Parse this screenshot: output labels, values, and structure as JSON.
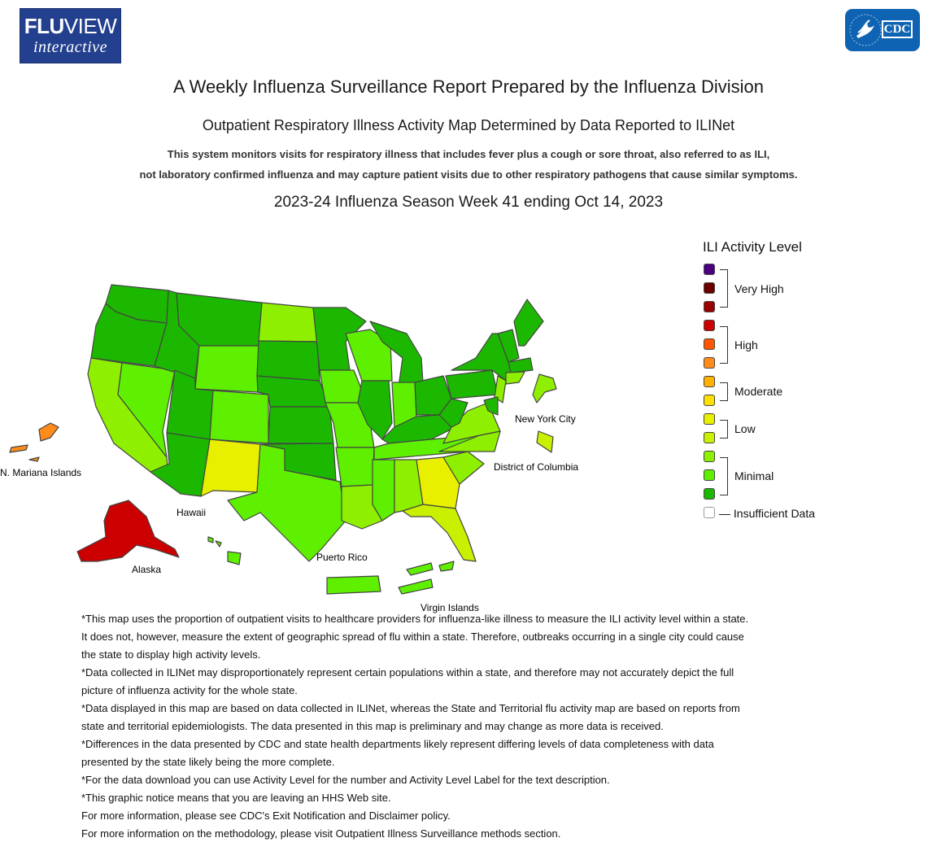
{
  "header": {
    "logo_left_line1_bold": "FLU",
    "logo_left_line1_thin": "VIEW",
    "logo_left_line2": "interactive",
    "logo_right": "CDC"
  },
  "titles": {
    "main": "A Weekly Influenza Surveillance Report Prepared by the Influenza Division",
    "sub": "Outpatient Respiratory Illness Activity Map Determined by Data Reported to ILINet",
    "desc_line1": "This system monitors visits for respiratory illness that includes fever plus a cough or sore throat, also referred to as ILI,",
    "desc_line2": "not laboratory confirmed influenza and may capture patient visits due to other respiratory pathogens that cause similar symptoms.",
    "week": "2023-24 Influenza Season Week 41 ending Oct 14, 2023"
  },
  "map_labels": {
    "mariana": "N. Mariana Islands",
    "hawaii": "Hawaii",
    "alaska": "Alaska",
    "puerto_rico": "Puerto Rico",
    "virgin_islands": "Virgin Islands",
    "nyc": "New York City",
    "dc": "District of Columbia"
  },
  "legend": {
    "title": "ILI Activity Level",
    "swatch_colors": [
      "#4b0082",
      "#6b0000",
      "#990000",
      "#cc0000",
      "#ff5500",
      "#ff8c1a",
      "#ffb000",
      "#ffe000",
      "#e8f000",
      "#c8f000",
      "#8ef000",
      "#5ef000",
      "#1cb800",
      "#ffffff"
    ],
    "groups": [
      "Very High",
      "High",
      "Moderate",
      "Low",
      "Minimal"
    ],
    "insufficient": "— Insufficient Data"
  },
  "colors": {
    "alaska": "#cc0000",
    "mariana": "#ff8c1a",
    "new_mexico": "#e8f000",
    "georgia": "#e8f000",
    "minimal_dark": "#1cb800",
    "minimal_mid": "#5ef000",
    "minimal_light": "#8ef000",
    "low": "#c8f000"
  },
  "notes": [
    "*This map uses the proportion of outpatient visits to healthcare providers for influenza-like illness to measure the ILI activity level within a state.",
    "It does not, however, measure the extent of geographic spread of flu within a state. Therefore, outbreaks occurring in a single city could cause",
    "the state to display high activity levels.",
    "*Data collected in ILINet may disproportionately represent certain populations within a state, and therefore may not accurately depict the full",
    "picture of influenza activity for the whole state.",
    "*Data displayed in this map are based on data collected in ILINet, whereas the State and Territorial flu activity map are based on reports from",
    "state and territorial epidemiologists. The data presented in this map is preliminary and may change as more data is received.",
    "*Differences in the data presented by CDC and state health departments likely represent differing levels of data completeness with data",
    "presented by the state likely being the more complete.",
    "*For the data download you can use Activity Level for the number and Activity Level Label for the text description.",
    "*This graphic notice means that you are leaving an HHS Web site.",
    "For more information, please see CDC's Exit Notification and Disclaimer policy.",
    "For more information on the methodology, please visit Outpatient Illness Surveillance methods section."
  ]
}
